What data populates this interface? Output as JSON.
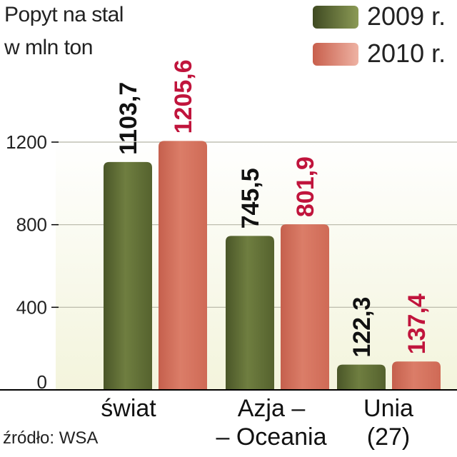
{
  "title_lines": [
    "Popyt na  stal",
    "w mln ton"
  ],
  "source": "źródło: WSA",
  "colors": {
    "series_2009": "#6b7a3c",
    "series_2009_dark": "#4a5628",
    "series_2010": "#d4705c",
    "series_2010_light": "#e8a596",
    "label_2010_highlight": "#c0143c",
    "label_default": "#111111",
    "background_top": "#ffffff",
    "background_bottom": "#f3f4dc"
  },
  "chart_data": {
    "type": "bar",
    "categories": [
      [
        "świat"
      ],
      [
        "Azja –",
        "– Oceania"
      ],
      [
        "Unia",
        "(27)"
      ]
    ],
    "series": [
      {
        "name": "2009 r.",
        "values": [
          1103.7,
          745.5,
          122.3
        ],
        "labels": [
          "1103,7",
          "745,5",
          "122,3"
        ]
      },
      {
        "name": "2010 r.",
        "values": [
          1205.6,
          801.9,
          137.4
        ],
        "labels": [
          "1205,6",
          "801,9",
          "137,4"
        ]
      }
    ],
    "yticks": [
      "0",
      "400",
      "800",
      "1200"
    ],
    "ytick_values": [
      0,
      400,
      800,
      1200
    ],
    "ylim": [
      0,
      1200
    ],
    "grid": true,
    "legend_placement": "top-right"
  }
}
